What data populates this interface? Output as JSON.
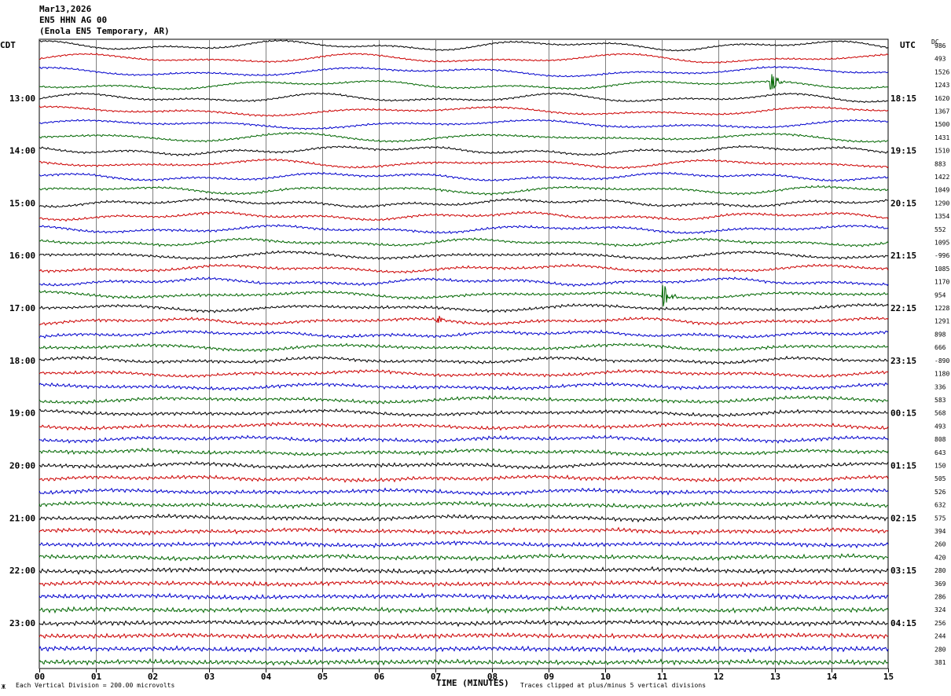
{
  "header": {
    "date": "Mar13,2026",
    "channel": "EN5 HHN AG 00",
    "station": "(Enola EN5 Temporary, AR)"
  },
  "labels": {
    "left_tz": "CDT",
    "right_tz": "UTC",
    "dc": "DC",
    "xlabel": "TIME (MINUTES)",
    "scale": "Each Vertical Division =  200.00 microvolts",
    "clip": "Traces clipped at plus/minus 5 vertical divisions",
    "corner": "Ж"
  },
  "chart_data": {
    "type": "line",
    "title": "EN5 HHN AG 00",
    "xlabel": "TIME (MINUTES)",
    "xlim": [
      0,
      15
    ],
    "x_ticks": [
      "00",
      "01",
      "02",
      "03",
      "04",
      "05",
      "06",
      "07",
      "08",
      "09",
      "10",
      "11",
      "12",
      "13",
      "14",
      "15"
    ],
    "rows_per_hour": 4,
    "n_traces": 48,
    "trace_colors": [
      "#000000",
      "#cc0000",
      "#0000cc",
      "#006600"
    ],
    "left_hour_labels": [
      {
        "row": 4,
        "text": "13:00"
      },
      {
        "row": 8,
        "text": "14:00"
      },
      {
        "row": 12,
        "text": "15:00"
      },
      {
        "row": 16,
        "text": "16:00"
      },
      {
        "row": 20,
        "text": "17:00"
      },
      {
        "row": 24,
        "text": "18:00"
      },
      {
        "row": 28,
        "text": "19:00"
      },
      {
        "row": 32,
        "text": "20:00"
      },
      {
        "row": 36,
        "text": "21:00"
      },
      {
        "row": 40,
        "text": "22:00"
      },
      {
        "row": 44,
        "text": "23:00"
      }
    ],
    "right_hour_labels": [
      {
        "row": 4,
        "text": "18:15"
      },
      {
        "row": 8,
        "text": "19:15"
      },
      {
        "row": 12,
        "text": "20:15"
      },
      {
        "row": 16,
        "text": "21:15"
      },
      {
        "row": 20,
        "text": "22:15"
      },
      {
        "row": 24,
        "text": "23:15"
      },
      {
        "row": 28,
        "text": "00:15"
      },
      {
        "row": 32,
        "text": "01:15"
      },
      {
        "row": 36,
        "text": "02:15"
      },
      {
        "row": 40,
        "text": "03:15"
      },
      {
        "row": 44,
        "text": "04:15"
      }
    ],
    "dc_offsets": [
      "986",
      "493",
      "1526",
      "1243",
      "1620",
      "1367",
      "1500",
      "1431",
      "1510",
      "883",
      "1422",
      "1049",
      "1290",
      "1354",
      "552",
      "1095",
      "-996",
      "1085",
      "1170",
      "954",
      "1228",
      "1291",
      "898",
      "666",
      "-890",
      "1180",
      "336",
      "583",
      "568",
      "493",
      "808",
      "643",
      "150",
      "505",
      "526",
      "632",
      "575",
      "394",
      "260",
      "420",
      "280",
      "369",
      "286",
      "324",
      "256",
      "244",
      "280",
      "381"
    ],
    "events": [
      {
        "row": 3,
        "minute": 12.95,
        "amp": 1.6
      },
      {
        "row": 19,
        "minute": 11.05,
        "amp": 1.8
      },
      {
        "row": 21,
        "minute": 7.05,
        "amp": 0.6
      }
    ]
  }
}
